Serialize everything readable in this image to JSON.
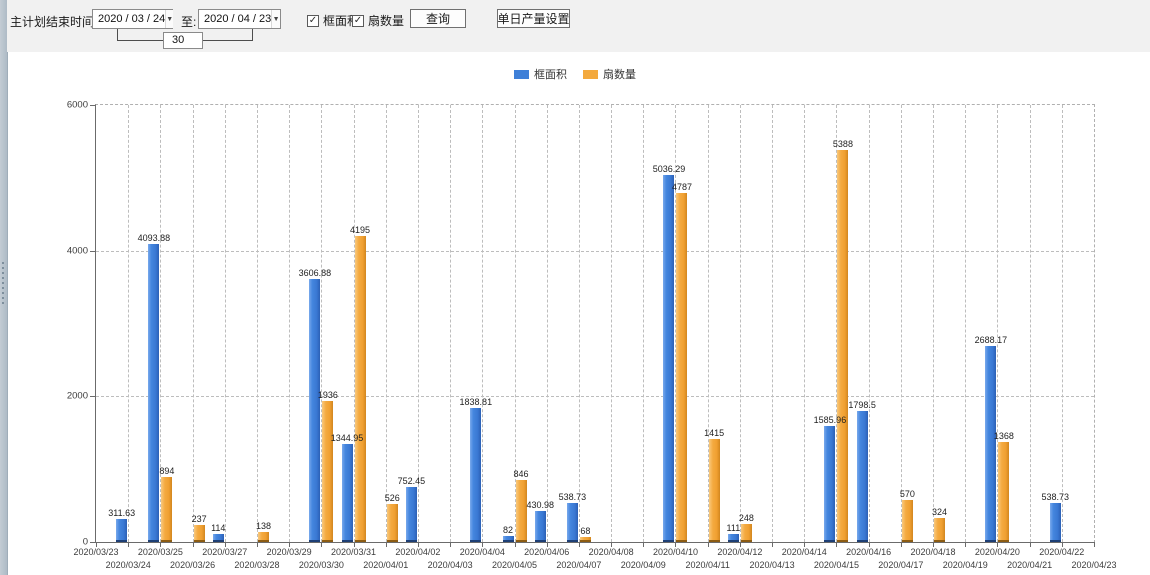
{
  "toolbar": {
    "end_time_label": "主计划结束时间:",
    "date_from": "2020 / 03 / 24",
    "to_label": "至:",
    "date_to": "2020 / 04 / 23",
    "interval_days": "30",
    "checkbox_frame_area": "框面积",
    "checkbox_fan_count": "扇数量",
    "check_glyph": "✓",
    "dropdown_glyph": "▼",
    "query_button": "查询",
    "daily_output_button": "单日产量设置"
  },
  "chart_data": {
    "type": "bar",
    "title": "",
    "xlabel": "",
    "ylabel": "",
    "ylim": [
      0,
      6000
    ],
    "yticks": [
      0,
      2000,
      4000,
      6000
    ],
    "grid": "dashed",
    "legend_position": "top-center",
    "categories": [
      "2020/03/23",
      "2020/03/24",
      "2020/03/25",
      "2020/03/26",
      "2020/03/27",
      "2020/03/28",
      "2020/03/29",
      "2020/03/30",
      "2020/03/31",
      "2020/04/01",
      "2020/04/02",
      "2020/04/03",
      "2020/04/04",
      "2020/04/05",
      "2020/04/06",
      "2020/04/07",
      "2020/04/08",
      "2020/04/09",
      "2020/04/10",
      "2020/04/11",
      "2020/04/12",
      "2020/04/13",
      "2020/04/14",
      "2020/04/15",
      "2020/04/16",
      "2020/04/17",
      "2020/04/18",
      "2020/04/19",
      "2020/04/20",
      "2020/04/21",
      "2020/04/22",
      "2020/04/23"
    ],
    "series": [
      {
        "name": "框面积",
        "color": "#3f80d8",
        "values": [
          null,
          311.63,
          4093.88,
          null,
          114,
          null,
          null,
          3606.88,
          1344.95,
          null,
          752.45,
          null,
          1838.81,
          82,
          430.98,
          538.73,
          null,
          null,
          5036.29,
          null,
          111,
          null,
          null,
          1585.96,
          1798.5,
          null,
          null,
          null,
          2688.17,
          null,
          538.73,
          null
        ]
      },
      {
        "name": "扇数量",
        "color": "#f3a93d",
        "values": [
          null,
          null,
          894,
          237,
          null,
          138,
          null,
          1936,
          4195,
          526,
          null,
          null,
          null,
          846,
          null,
          68,
          null,
          null,
          4787,
          1415,
          248,
          null,
          null,
          5388,
          null,
          570,
          324,
          null,
          1368,
          null,
          null,
          null
        ]
      }
    ]
  }
}
